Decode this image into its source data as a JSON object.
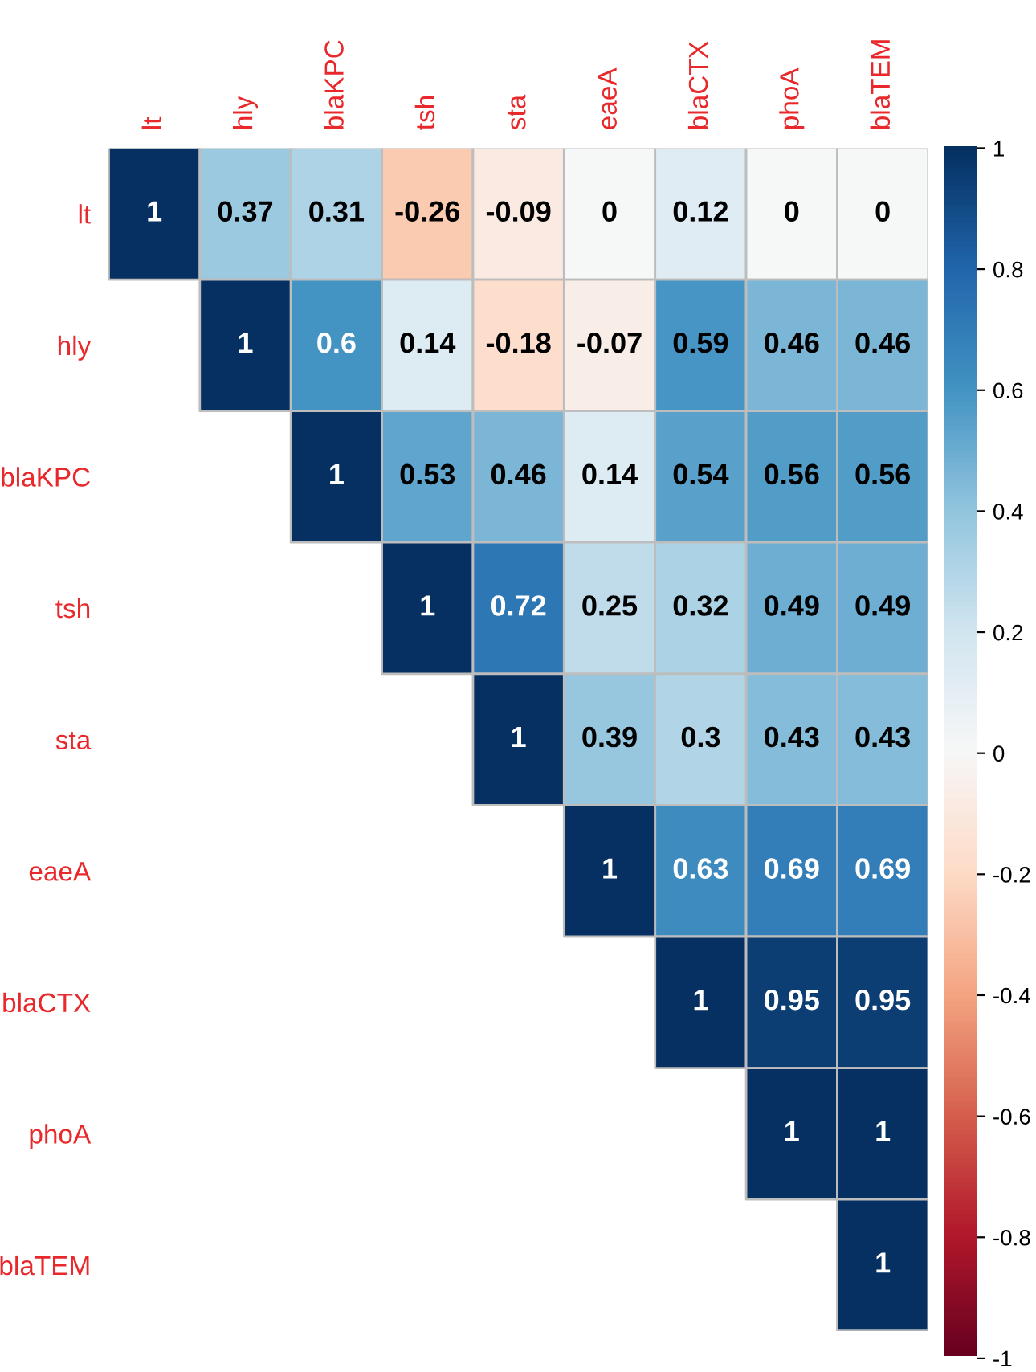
{
  "chart_data": {
    "type": "heatmap",
    "categories": [
      "lt",
      "hly",
      "blaKPC",
      "tsh",
      "sta",
      "eaeA",
      "blaCTX",
      "phoA",
      "blaTEM"
    ],
    "y_categories": [
      "lt",
      "hly",
      "blaKPC",
      "tsh",
      "sta",
      "eaeA",
      "blaCTX",
      "phoA",
      "blaTEM"
    ],
    "cells": [
      [
        1,
        0.37,
        0.31,
        -0.26,
        -0.09,
        0,
        0.12,
        0,
        0
      ],
      [
        null,
        1,
        0.6,
        0.14,
        -0.18,
        -0.07,
        0.59,
        0.46,
        0.46
      ],
      [
        null,
        null,
        1,
        0.53,
        0.46,
        0.14,
        0.54,
        0.56,
        0.56
      ],
      [
        null,
        null,
        null,
        1,
        0.72,
        0.25,
        0.32,
        0.49,
        0.49
      ],
      [
        null,
        null,
        null,
        null,
        1,
        0.39,
        0.3,
        0.43,
        0.43
      ],
      [
        null,
        null,
        null,
        null,
        null,
        1,
        0.63,
        0.69,
        0.69
      ],
      [
        null,
        null,
        null,
        null,
        null,
        null,
        1,
        0.95,
        0.95
      ],
      [
        null,
        null,
        null,
        null,
        null,
        null,
        null,
        1,
        1
      ],
      [
        null,
        null,
        null,
        null,
        null,
        null,
        null,
        null,
        1
      ]
    ],
    "data_labels": true,
    "clim": [
      -1,
      1
    ],
    "cticks": [
      {
        "value": -1,
        "label": "-1"
      },
      {
        "value": -0.8,
        "label": "-0.8"
      },
      {
        "value": -0.6,
        "label": "-0.6"
      },
      {
        "value": -0.4,
        "label": "-0.4"
      },
      {
        "value": -0.2,
        "label": "-0.2"
      },
      0,
      0.2,
      0.4,
      0.6,
      0.8,
      1
    ]
  }
}
